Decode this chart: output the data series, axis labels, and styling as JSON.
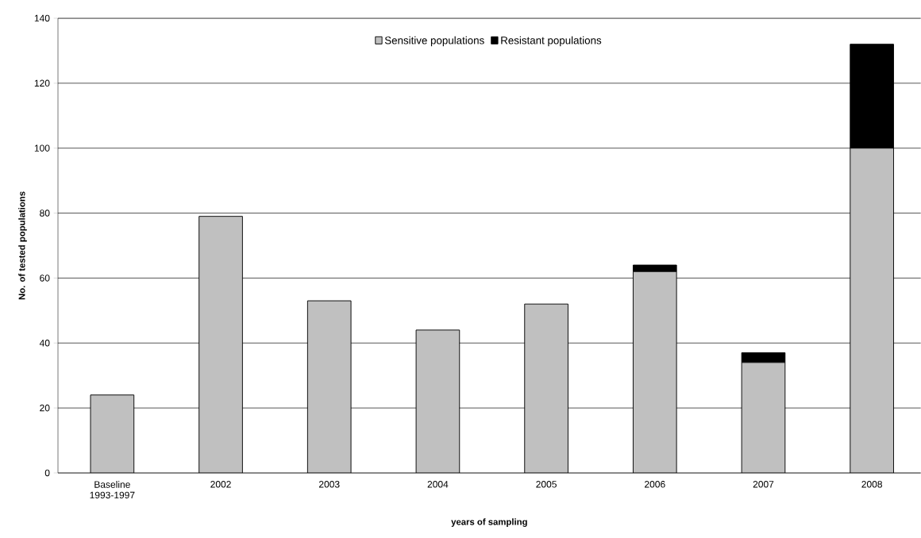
{
  "chart_data": {
    "type": "bar",
    "stacked": true,
    "categories": [
      "Baseline 1993-1997",
      "2002",
      "2003",
      "2004",
      "2005",
      "2006",
      "2007",
      "2008"
    ],
    "series": [
      {
        "name": "Sensitive populations",
        "color": "#c0c0c0",
        "values": [
          24,
          79,
          53,
          44,
          52,
          62,
          34,
          100
        ]
      },
      {
        "name": "Resistant populations",
        "color": "#000000",
        "values": [
          0,
          0,
          0,
          0,
          0,
          2,
          3,
          32
        ]
      }
    ],
    "xlabel": "years of sampling",
    "ylabel": "No. of tested populations",
    "ylim": [
      0,
      140
    ],
    "yticks": [
      0,
      20,
      40,
      60,
      80,
      100,
      120,
      140
    ],
    "grid": "y",
    "legend": "top"
  }
}
